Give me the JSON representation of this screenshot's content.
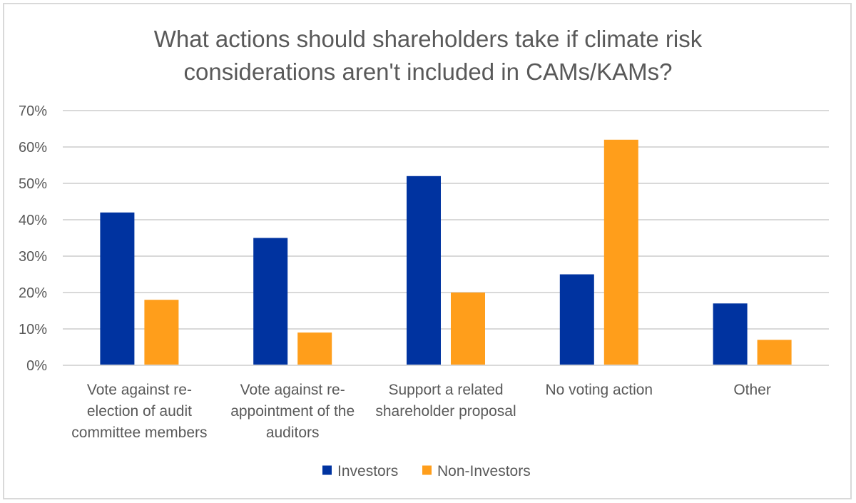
{
  "chart_data": {
    "type": "bar",
    "title_lines": [
      "What actions should shareholders take if climate risk",
      "considerations aren't included in CAMs/KAMs?"
    ],
    "categories": [
      [
        "Vote against re-",
        "election of audit",
        "committee members"
      ],
      [
        "Vote against re-",
        "appointment of the",
        "auditors"
      ],
      [
        "Support a related",
        "shareholder proposal"
      ],
      [
        "No voting action"
      ],
      [
        "Other"
      ]
    ],
    "series": [
      {
        "name": "Investors",
        "color": "#0033a0",
        "values": [
          42,
          35,
          52,
          25,
          17
        ]
      },
      {
        "name": "Non-Investors",
        "color": "#ff9e1b",
        "values": [
          18,
          9,
          20,
          62,
          7
        ]
      }
    ],
    "yticks": [
      "0%",
      "10%",
      "20%",
      "30%",
      "40%",
      "50%",
      "60%",
      "70%"
    ],
    "ylim": [
      0,
      70
    ],
    "grid": true,
    "legend_position": "bottom"
  }
}
